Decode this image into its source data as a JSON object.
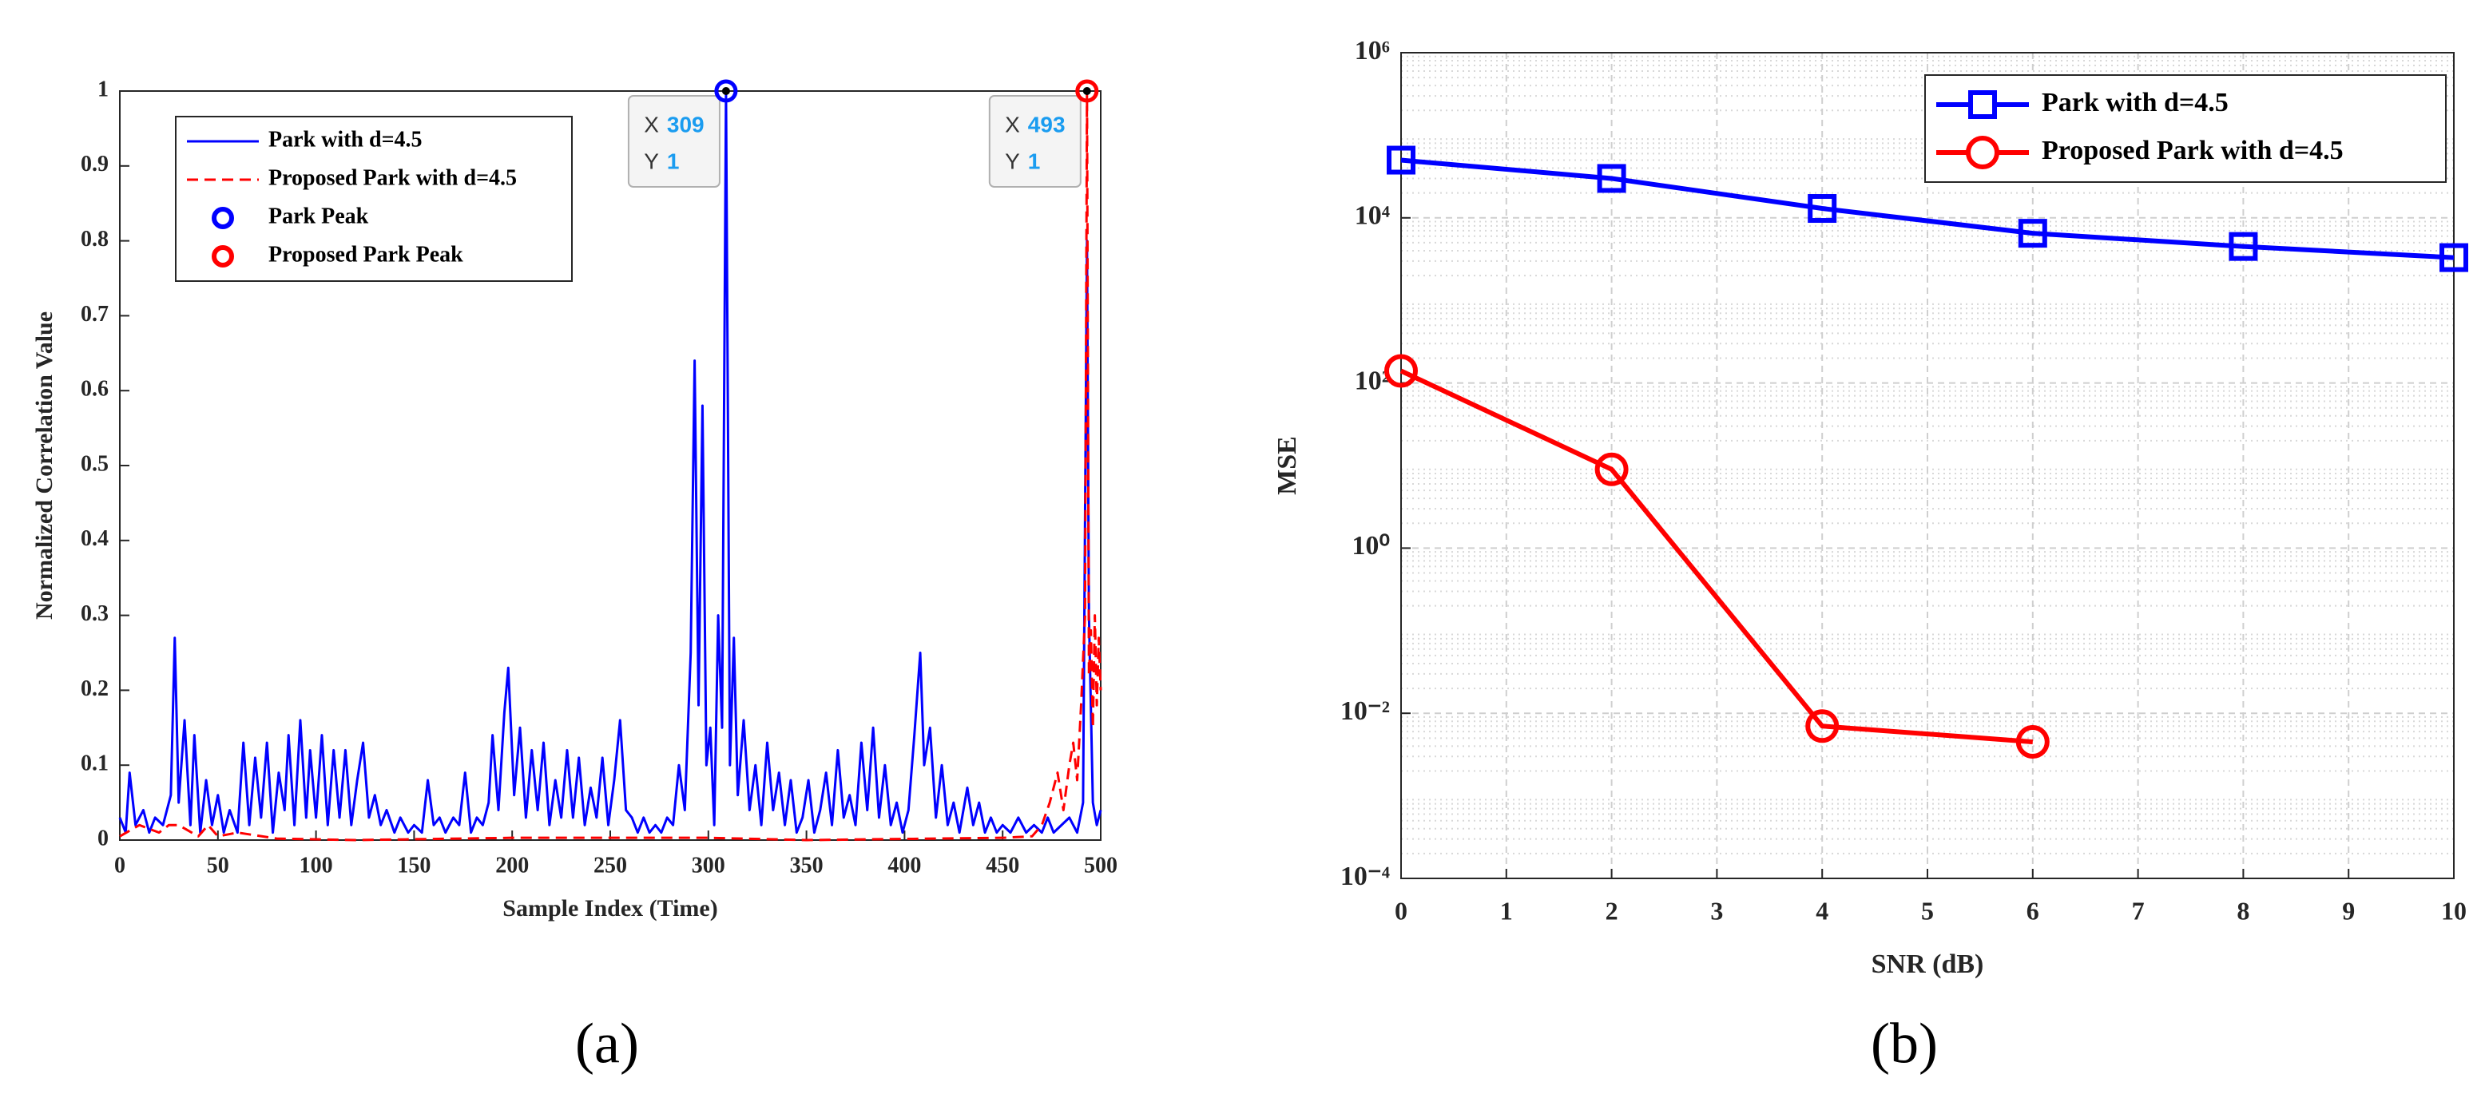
{
  "chart_data": [
    {
      "type": "line",
      "caption": "(a)",
      "xlabel": "Sample Index (Time)",
      "ylabel": "Normalized Correlation Value",
      "xlim": [
        0,
        500
      ],
      "xticks": [
        0,
        50,
        100,
        150,
        200,
        250,
        300,
        350,
        400,
        450,
        500
      ],
      "ylim": [
        0,
        1
      ],
      "yticks": [
        0,
        0.1,
        0.2,
        0.3,
        0.4,
        0.5,
        0.6,
        0.7,
        0.8,
        0.9,
        1
      ],
      "grid": false,
      "legend": "upper left",
      "series": [
        {
          "name": "Park with d=4.5",
          "color": "#0000ff",
          "dash": false,
          "x": [
            0,
            3,
            5,
            8,
            12,
            15,
            18,
            22,
            26,
            28,
            30,
            33,
            36,
            38,
            41,
            44,
            47,
            50,
            53,
            56,
            60,
            63,
            66,
            69,
            72,
            75,
            78,
            81,
            84,
            86,
            89,
            92,
            95,
            97,
            100,
            103,
            106,
            109,
            112,
            115,
            118,
            121,
            124,
            127,
            130,
            133,
            136,
            140,
            143,
            147,
            150,
            154,
            157,
            160,
            163,
            166,
            170,
            173,
            176,
            179,
            182,
            185,
            188,
            190,
            193,
            196,
            198,
            201,
            204,
            207,
            210,
            213,
            216,
            219,
            222,
            225,
            228,
            231,
            234,
            237,
            240,
            243,
            246,
            249,
            252,
            255,
            258,
            261,
            264,
            267,
            270,
            273,
            276,
            279,
            282,
            285,
            288,
            291,
            293,
            295,
            297,
            299,
            301,
            303,
            305,
            307,
            309,
            311,
            313,
            315,
            318,
            321,
            324,
            327,
            330,
            333,
            336,
            339,
            342,
            345,
            348,
            351,
            354,
            357,
            360,
            363,
            366,
            369,
            372,
            375,
            378,
            381,
            384,
            387,
            390,
            393,
            396,
            399,
            402,
            405,
            408,
            410,
            413,
            416,
            419,
            422,
            425,
            428,
            432,
            435,
            438,
            441,
            444,
            447,
            450,
            454,
            458,
            462,
            466,
            470,
            473,
            476,
            480,
            484,
            488,
            491,
            493,
            494,
            496,
            498,
            500
          ],
          "values": [
            0.03,
            0.01,
            0.09,
            0.02,
            0.04,
            0.01,
            0.03,
            0.02,
            0.06,
            0.27,
            0.05,
            0.16,
            0.02,
            0.14,
            0.01,
            0.08,
            0.02,
            0.06,
            0.01,
            0.04,
            0.01,
            0.13,
            0.02,
            0.11,
            0.03,
            0.13,
            0.01,
            0.09,
            0.04,
            0.14,
            0.02,
            0.16,
            0.03,
            0.12,
            0.03,
            0.14,
            0.02,
            0.12,
            0.03,
            0.12,
            0.02,
            0.08,
            0.13,
            0.03,
            0.06,
            0.02,
            0.04,
            0.01,
            0.03,
            0.01,
            0.02,
            0.01,
            0.08,
            0.02,
            0.03,
            0.01,
            0.03,
            0.02,
            0.09,
            0.01,
            0.03,
            0.02,
            0.05,
            0.14,
            0.04,
            0.17,
            0.23,
            0.06,
            0.15,
            0.03,
            0.12,
            0.04,
            0.13,
            0.02,
            0.08,
            0.03,
            0.12,
            0.03,
            0.11,
            0.02,
            0.07,
            0.03,
            0.11,
            0.02,
            0.08,
            0.16,
            0.04,
            0.03,
            0.01,
            0.03,
            0.01,
            0.02,
            0.01,
            0.03,
            0.02,
            0.1,
            0.04,
            0.25,
            0.64,
            0.18,
            0.58,
            0.1,
            0.15,
            0.02,
            0.3,
            0.15,
            1,
            0.1,
            0.27,
            0.06,
            0.16,
            0.04,
            0.1,
            0.02,
            0.13,
            0.04,
            0.09,
            0.02,
            0.08,
            0.01,
            0.03,
            0.08,
            0.01,
            0.04,
            0.09,
            0.02,
            0.12,
            0.03,
            0.06,
            0.02,
            0.13,
            0.04,
            0.15,
            0.03,
            0.1,
            0.02,
            0.05,
            0.01,
            0.04,
            0.14,
            0.25,
            0.1,
            0.15,
            0.03,
            0.1,
            0.02,
            0.05,
            0.01,
            0.07,
            0.02,
            0.05,
            0.01,
            0.03,
            0.01,
            0.02,
            0.01,
            0.03,
            0.01,
            0.02,
            0.01,
            0.03,
            0.01,
            0.02,
            0.03,
            0.01,
            0.05,
            0.8,
            0.3,
            0.05,
            0.02,
            0.04
          ]
        },
        {
          "name": "Proposed Park with d=4.5",
          "color": "#ff0000",
          "dash": true,
          "x": [
            0,
            10,
            20,
            25,
            30,
            40,
            45,
            50,
            60,
            80,
            120,
            200,
            300,
            350,
            450,
            465,
            470,
            474,
            478,
            481,
            484,
            486,
            488,
            490,
            492,
            493,
            494,
            495,
            496,
            497,
            498,
            499,
            500
          ],
          "values": [
            0.005,
            0.02,
            0.01,
            0.02,
            0.02,
            0.005,
            0.02,
            0.005,
            0.01,
            0.002,
            0,
            0.003,
            0.003,
            0,
            0.003,
            0.005,
            0.02,
            0.05,
            0.09,
            0.04,
            0.1,
            0.13,
            0.08,
            0.18,
            0.3,
            1,
            0.22,
            0.28,
            0.15,
            0.3,
            0.18,
            0.27,
            0.2
          ]
        }
      ],
      "markers": [
        {
          "name": "Park Peak",
          "color": "#0000ff",
          "x": [
            309
          ],
          "values": [
            1
          ]
        },
        {
          "name": "Proposed Park Peak",
          "color": "#ff0000",
          "x": [
            493
          ],
          "values": [
            1
          ]
        }
      ],
      "datatip_labels": [
        "X",
        "Y"
      ]
    },
    {
      "type": "line",
      "caption": "(b)",
      "xlabel": "SNR (dB)",
      "ylabel": "MSE",
      "xlim": [
        0,
        10
      ],
      "xticks": [
        0,
        1,
        2,
        3,
        4,
        5,
        6,
        7,
        8,
        9,
        10
      ],
      "yscale": "log",
      "ylim": [
        0.0001,
        1000000
      ],
      "yticks": [
        {
          "value": 0.0001,
          "label": "10⁻⁴"
        },
        {
          "value": 0.01,
          "label": "10⁻²"
        },
        {
          "value": 1,
          "label": "10⁰"
        },
        {
          "value": 100,
          "label": "10²"
        },
        {
          "value": 10000,
          "label": "10⁴"
        },
        {
          "value": 1000000,
          "label": "10⁶"
        }
      ],
      "grid": true,
      "minor_grid": true,
      "legend": "upper right",
      "x": [
        0,
        2,
        4,
        6,
        8,
        10
      ],
      "series": [
        {
          "name": "Park with d=4.5",
          "color": "#0000ff",
          "marker": "square",
          "values": [
            50000,
            30000,
            13000,
            6500,
            4500,
            3300
          ]
        },
        {
          "name": "Proposed Park with d=4.5",
          "color": "#ff0000",
          "marker": "circle",
          "values": [
            140,
            9,
            0.007,
            0.0045,
            null,
            null
          ]
        }
      ]
    }
  ]
}
